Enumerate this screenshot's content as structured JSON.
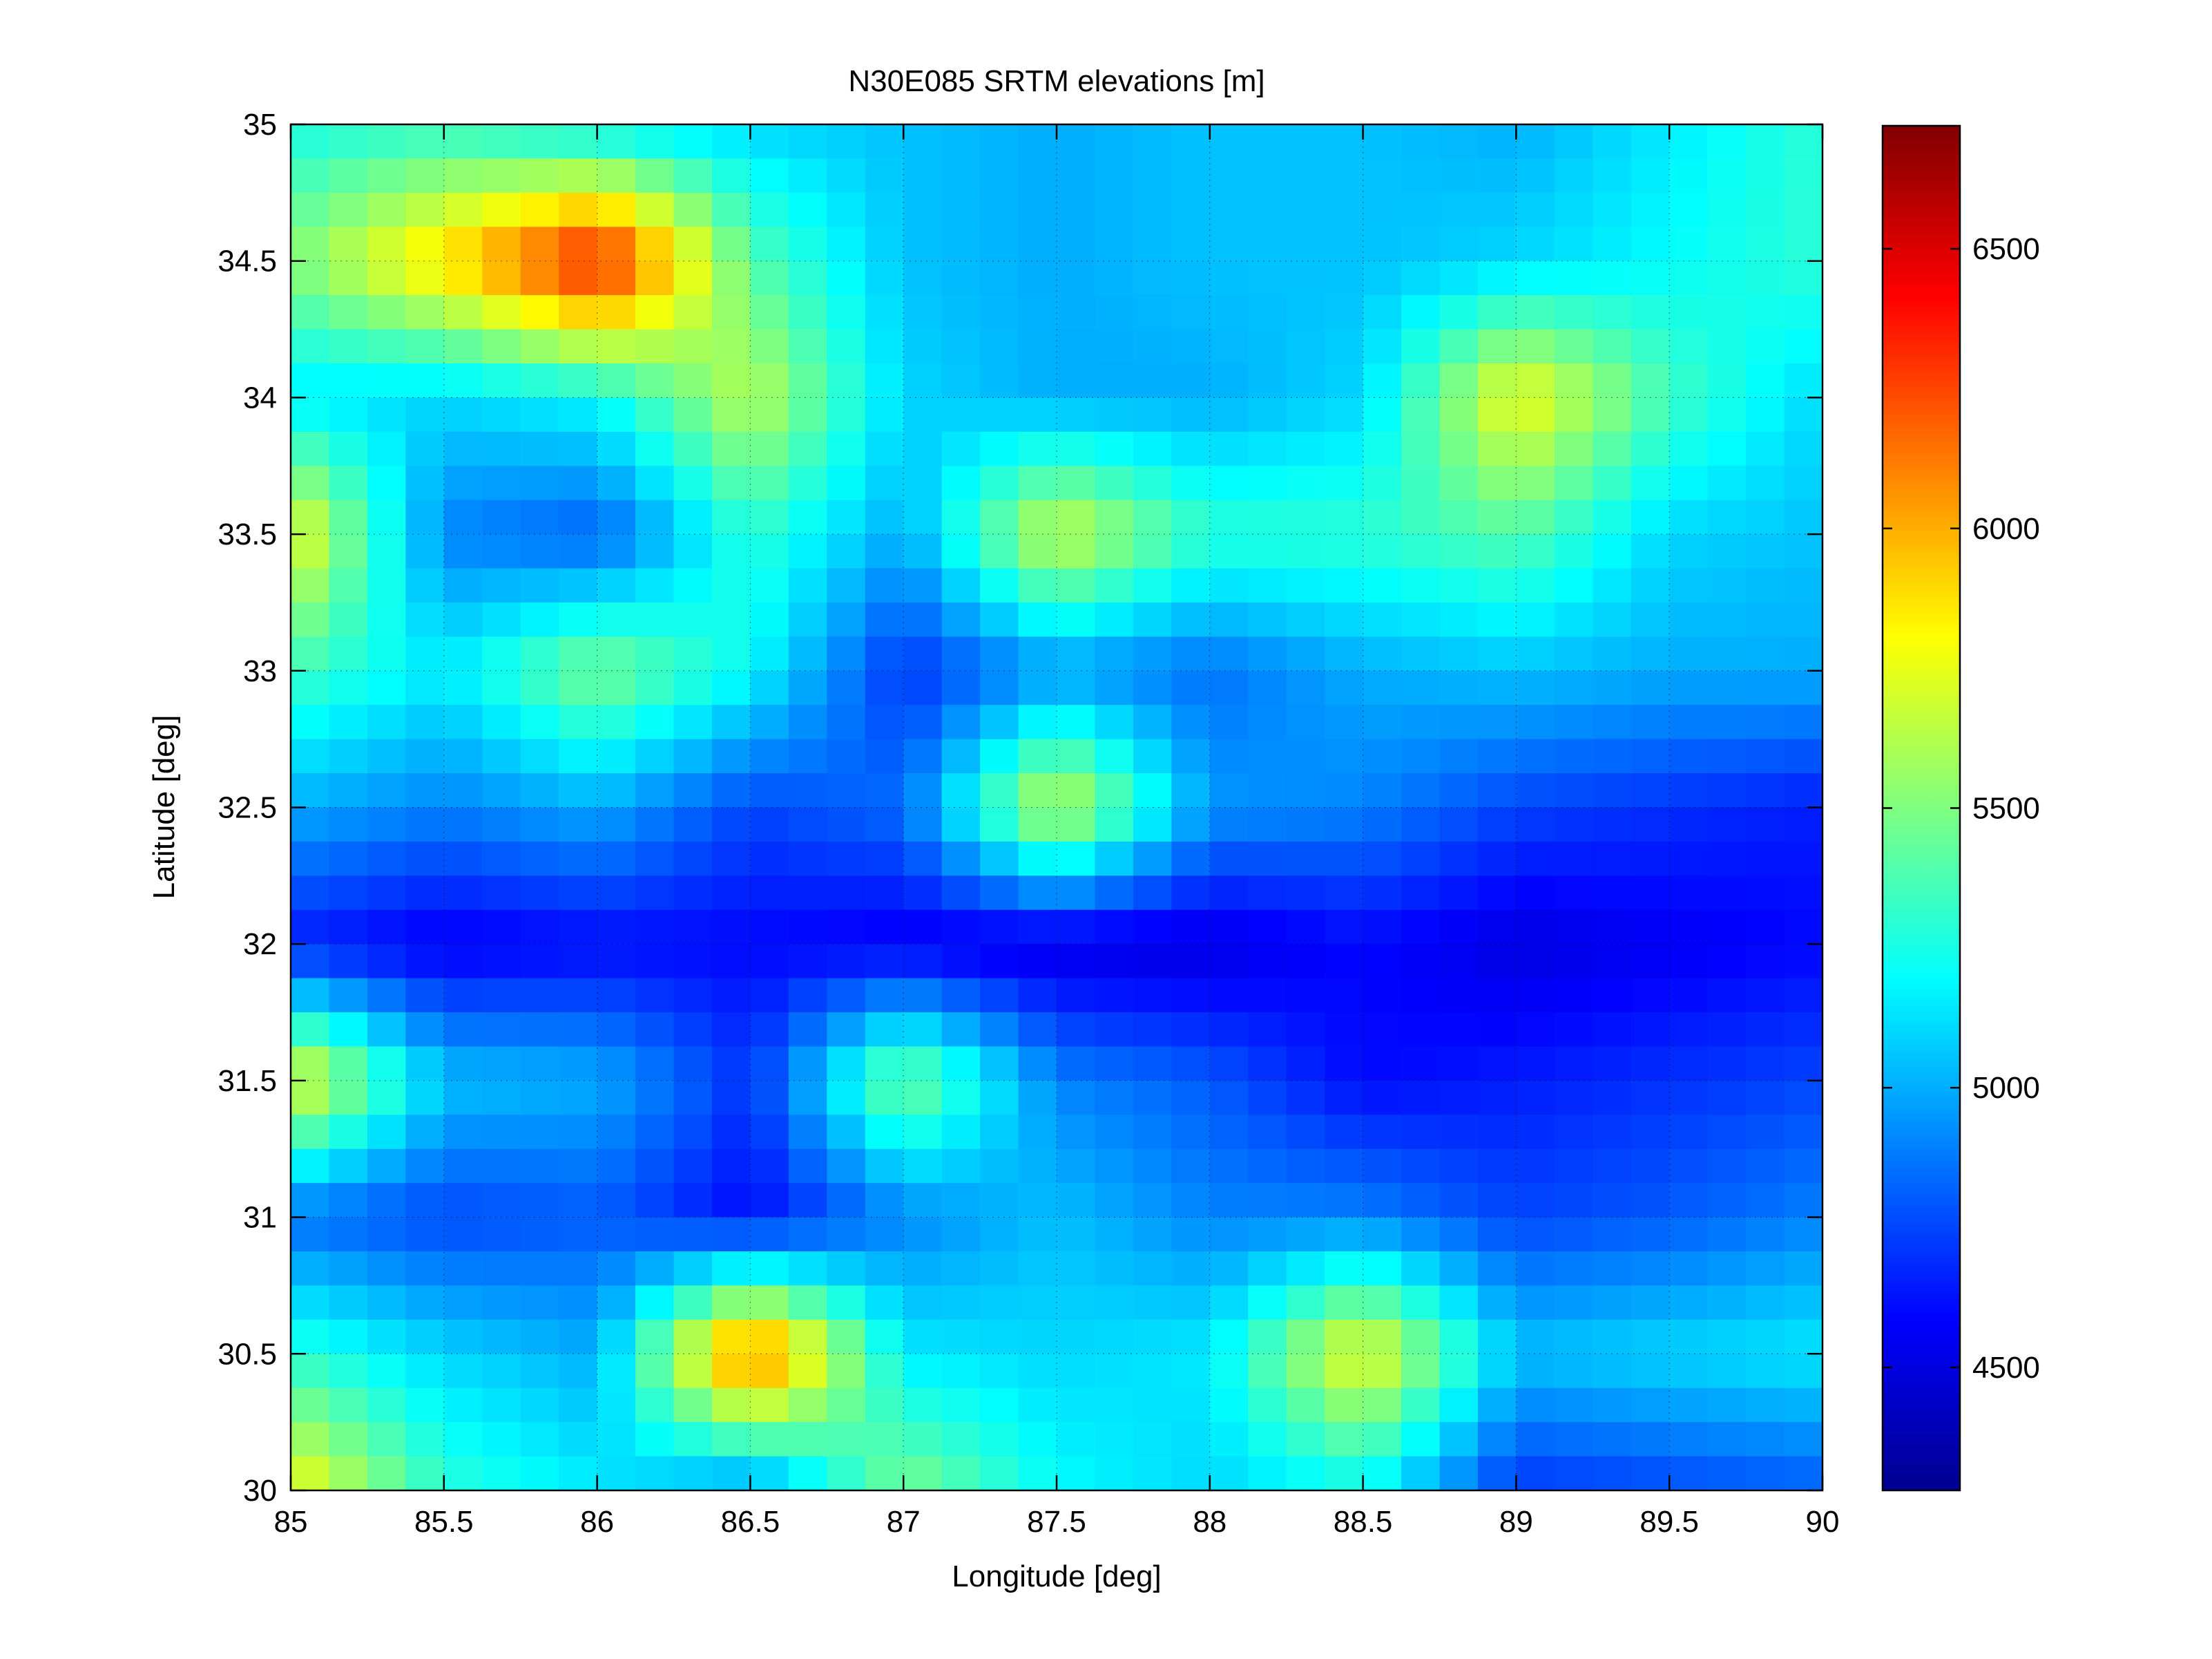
{
  "chart_data": {
    "type": "heatmap",
    "title": "N30E085 SRTM elevations [m]",
    "xlabel": "Longitude [deg]",
    "ylabel": "Latitude [deg]",
    "xlim": [
      85,
      90
    ],
    "ylim": [
      30,
      35
    ],
    "grid": true,
    "xticks": [
      85,
      85.5,
      86,
      86.5,
      87,
      87.5,
      88,
      88.5,
      89,
      89.5,
      90
    ],
    "xtick_labels": [
      "85",
      "85.5",
      "86",
      "86.5",
      "87",
      "87.5",
      "88",
      "88.5",
      "89",
      "89.5",
      "90"
    ],
    "yticks": [
      30,
      30.5,
      31,
      31.5,
      32,
      32.5,
      33,
      33.5,
      34,
      34.5,
      35
    ],
    "ytick_labels": [
      "30",
      "30.5",
      "31",
      "31.5",
      "32",
      "32.5",
      "33",
      "33.5",
      "34",
      "34.5",
      "35"
    ],
    "colormap": "jet",
    "colorbar": {
      "clim": [
        4280,
        6720
      ],
      "ticks": [
        4500,
        5000,
        5500,
        6000,
        6500
      ],
      "tick_labels": [
        "4500",
        "5000",
        "5500",
        "6000",
        "6500"
      ],
      "colors": [
        "#00008f",
        "#0000ff",
        "#00ffff",
        "#ffff00",
        "#ff0000",
        "#800000"
      ]
    },
    "columns_lon": [
      85,
      85.5,
      86,
      86.5,
      87,
      87.5,
      88,
      88.5,
      89,
      89.5,
      90
    ],
    "rows_lat": [
      35,
      34.5,
      34,
      33.5,
      33,
      32.5,
      32,
      31.5,
      31,
      30.5,
      30
    ],
    "values": [
      [
        5250,
        5300,
        5150,
        5100,
        5050,
        5000,
        5050,
        5050,
        5000,
        5150,
        5300
      ],
      [
        5500,
        5900,
        6400,
        5400,
        5050,
        5000,
        5050,
        5050,
        5100,
        5200,
        5300
      ],
      [
        5150,
        5100,
        5200,
        5650,
        5100,
        5000,
        5000,
        5100,
        5800,
        5350,
        5100
      ],
      [
        5800,
        4900,
        4800,
        5300,
        5000,
        5700,
        5300,
        5300,
        5400,
        5100,
        5050
      ],
      [
        5350,
        5150,
        5500,
        5200,
        4700,
        4950,
        4850,
        5000,
        5050,
        5000,
        5000
      ],
      [
        5000,
        4900,
        5000,
        4750,
        4850,
        5700,
        4950,
        4900,
        4750,
        4700,
        4650
      ],
      [
        4650,
        4550,
        4600,
        4600,
        4550,
        4500,
        4500,
        4600,
        4500,
        4550,
        4600
      ],
      [
        5800,
        5050,
        5000,
        4700,
        5500,
        4900,
        4800,
        4600,
        4650,
        4700,
        4750
      ],
      [
        4850,
        4750,
        4800,
        4600,
        4900,
        5050,
        4900,
        4900,
        4750,
        4800,
        4900
      ],
      [
        5300,
        5100,
        5000,
        6200,
        5150,
        5100,
        5150,
        5800,
        5050,
        5100,
        5150
      ],
      [
        5800,
        5300,
        5150,
        4900,
        5500,
        5200,
        5100,
        5200,
        4700,
        4750,
        4800
      ]
    ]
  }
}
